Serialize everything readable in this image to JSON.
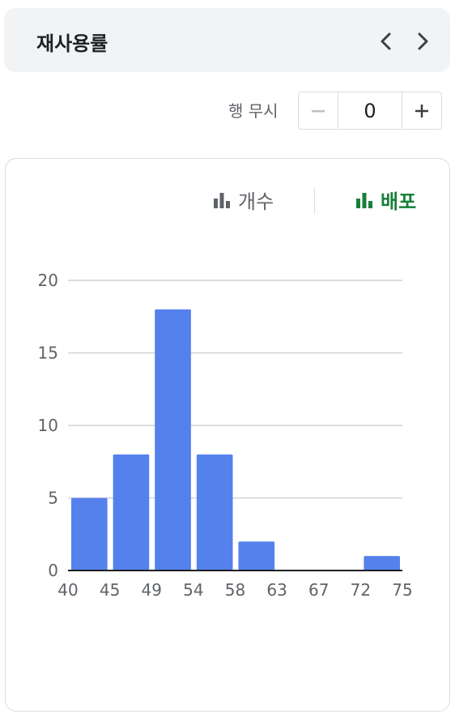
{
  "header": {
    "title": "재사용률"
  },
  "skip_rows": {
    "label": "행 무시",
    "value": "0"
  },
  "toggle": {
    "count_label": "개수",
    "distribution_label": "배포"
  },
  "colors": {
    "bar": "#5581ec",
    "active": "#188038",
    "inactive": "#5f6368",
    "grid": "#cfd1d4"
  },
  "icons": {
    "prev": "chevron-left-icon",
    "next": "chevron-right-icon",
    "minus": "minus-icon",
    "plus": "plus-icon",
    "count": "bar-chart-icon",
    "distribution": "bar-chart-icon"
  },
  "chart_data": {
    "type": "bar",
    "bins": [
      [
        40,
        45
      ],
      [
        45,
        49
      ],
      [
        49,
        54
      ],
      [
        54,
        58
      ],
      [
        58,
        63
      ],
      [
        63,
        67
      ],
      [
        67,
        72
      ],
      [
        72,
        75
      ]
    ],
    "values": [
      5,
      8,
      18,
      8,
      2,
      0,
      0,
      1
    ],
    "x_ticks": [
      "40",
      "45",
      "49",
      "54",
      "58",
      "63",
      "67",
      "72",
      "75"
    ],
    "y_ticks": [
      0,
      5,
      10,
      15,
      20
    ],
    "ylim": [
      0,
      20
    ],
    "grid": true
  }
}
